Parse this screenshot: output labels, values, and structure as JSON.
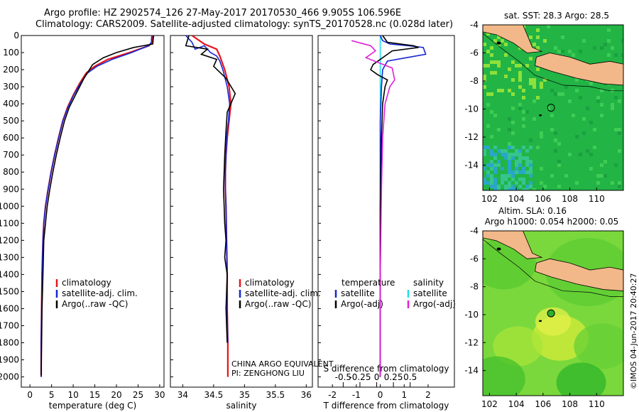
{
  "header": {
    "line1": "Argo profile: HZ 2902574_126 27-May-2017 20170530_466 9.905S 106.596E",
    "line2": "Climatology: CARS2009. Satellite-adjusted climatology: synTS_20170528.nc (0.028d later)"
  },
  "side_stamp": "©IMOS 04-Jun-2017 20:40:27",
  "colors": {
    "climatology": "#e8141b",
    "satellite": "#1526d4",
    "argo": "#000000",
    "sal_satellite": "#22dde8",
    "sal_argo": "#e020d8",
    "land": "#f2b889"
  },
  "chart_data": [
    {
      "type": "line",
      "xlabel": "temperature (deg C)",
      "ylabel": "",
      "xlim": [
        -2,
        31
      ],
      "ylim": [
        2060,
        0
      ],
      "xticks": [
        "0",
        "5",
        "10",
        "15",
        "20",
        "25",
        "30"
      ],
      "yticks": [
        "0",
        "100",
        "200",
        "300",
        "400",
        "500",
        "600",
        "700",
        "800",
        "900",
        "1000",
        "1100",
        "1200",
        "1300",
        "1400",
        "1500",
        "1600",
        "1700",
        "1800",
        "1900",
        "2000"
      ],
      "legend": [
        "climatology",
        "satellite-adj. clim.",
        "Argo(..raw -QC)"
      ],
      "series": [
        {
          "name": "climatology",
          "x": [
            28.5,
            28.3,
            28.2,
            27.5,
            23,
            18,
            15,
            13,
            11.5,
            10,
            8.7,
            7.6,
            6.6,
            5.7,
            4.9,
            4.2,
            3.6,
            3.2,
            3,
            2.8,
            2.7,
            2.6,
            2.6
          ],
          "y": [
            0,
            20,
            40,
            60,
            100,
            140,
            180,
            220,
            280,
            350,
            420,
            500,
            600,
            700,
            800,
            900,
            1000,
            1100,
            1200,
            1400,
            1600,
            1800,
            2000
          ]
        },
        {
          "name": "satellite-adj. clim.",
          "x": [
            28.2,
            28.1,
            28.1,
            27.4,
            23.5,
            19,
            15.5,
            13.3,
            11.7,
            10.1,
            8.8,
            7.6,
            6.6,
            5.7,
            4.9,
            4.2,
            3.6,
            3.2,
            3,
            2.8,
            2.7,
            2.6,
            2.6
          ],
          "y": [
            0,
            20,
            40,
            60,
            100,
            140,
            180,
            220,
            280,
            350,
            420,
            500,
            600,
            700,
            800,
            900,
            1000,
            1100,
            1200,
            1400,
            1600,
            1800,
            2000
          ]
        },
        {
          "name": "Argo(..raw -QC)",
          "x": [
            28.6,
            28.5,
            28.4,
            24,
            20,
            17,
            14.5,
            13.5,
            12.5,
            11.5,
            10.3,
            9.1,
            8,
            7,
            6.1,
            5.3,
            4.6,
            4,
            3.6,
            3.2,
            3,
            2.8,
            2.7,
            2.6
          ],
          "y": [
            0,
            20,
            50,
            70,
            100,
            130,
            170,
            210,
            250,
            300,
            360,
            420,
            500,
            600,
            700,
            800,
            900,
            1000,
            1100,
            1200,
            1400,
            1600,
            1800,
            1990
          ]
        }
      ]
    },
    {
      "type": "line",
      "xlabel": "salinity",
      "xlim": [
        33.8,
        36.1
      ],
      "ylim": [
        2060,
        0
      ],
      "xticks": [
        "34",
        "34.5",
        "35",
        "35.5",
        "36"
      ],
      "legend": [
        "climatology",
        "satellite-adj. clim.",
        "Argo(..raw -QC)"
      ],
      "annotation": [
        "CHINA ARGO EQUIVALENT",
        "PI: ZENGHONG LIU"
      ],
      "series": [
        {
          "name": "climatology",
          "x": [
            34.15,
            34.35,
            34.55,
            34.6,
            34.68,
            34.75,
            34.78,
            34.75,
            34.72,
            34.7,
            34.69,
            34.69,
            34.7,
            34.71,
            34.72,
            34.72,
            34.73,
            34.73
          ],
          "y": [
            0,
            50,
            80,
            120,
            200,
            300,
            400,
            500,
            600,
            700,
            800,
            900,
            1000,
            1200,
            1400,
            1600,
            1800,
            2000
          ]
        },
        {
          "name": "satellite-adj. clim.",
          "x": [
            34.05,
            34.15,
            34.2,
            34.35,
            34.45,
            34.55,
            34.6,
            34.65,
            34.72,
            34.76,
            34.74,
            34.71,
            34.7,
            34.69,
            34.69,
            34.7,
            34.71,
            34.72,
            34.72,
            34.73
          ],
          "y": [
            0,
            40,
            80,
            60,
            100,
            120,
            150,
            200,
            300,
            400,
            500,
            600,
            700,
            800,
            900,
            1000,
            1200,
            1400,
            1600,
            1800
          ]
        },
        {
          "name": "Argo(..raw -QC)",
          "x": [
            34.1,
            34.05,
            34.4,
            34.3,
            34.55,
            34.5,
            34.7,
            34.85,
            34.72,
            34.7,
            34.68,
            34.67,
            34.66,
            34.67,
            34.68,
            34.7,
            34.68,
            34.72,
            34.7,
            34.72
          ],
          "y": [
            0,
            60,
            80,
            110,
            140,
            180,
            250,
            340,
            450,
            560,
            700,
            800,
            900,
            1000,
            1100,
            1200,
            1300,
            1400,
            1600,
            1800
          ]
        }
      ]
    },
    {
      "type": "line",
      "xlabel": "T difference from climatology",
      "xlabel_top": "S difference from climatology",
      "xlim": [
        -2.6,
        3.1
      ],
      "ylim": [
        2060,
        0
      ],
      "xticks": [
        "-2",
        "-1",
        "0",
        "1",
        "2"
      ],
      "top_xticks": [
        "-0.5",
        "-0.25",
        "0",
        "0.25",
        "0.5"
      ],
      "legend": {
        "temperature": [
          "satellite",
          "Argo(-adj)"
        ],
        "salinity": [
          "satellite",
          "Argo(-adj)"
        ]
      },
      "series": [
        {
          "name": "satellite",
          "x": [
            0,
            0.1,
            0.4,
            1.2,
            1.8,
            1.9,
            1.1,
            0.3,
            0.1,
            0.05,
            0,
            0,
            0,
            0
          ],
          "y": [
            0,
            30,
            50,
            60,
            70,
            110,
            130,
            150,
            200,
            300,
            500,
            1000,
            1500,
            2000
          ]
        },
        {
          "name": "Argo(-adj)",
          "x": [
            0.1,
            0.3,
            1.4,
            1.6,
            0.5,
            -0.3,
            -0.4,
            -0.1,
            0.3,
            0.2,
            0.1,
            0.05,
            0,
            0,
            0,
            0
          ],
          "y": [
            0,
            40,
            60,
            70,
            90,
            170,
            200,
            230,
            260,
            300,
            400,
            600,
            1000,
            1400,
            1800,
            2000
          ]
        },
        {
          "name": "sal satellite",
          "x": [
            0,
            0,
            0,
            0,
            0
          ],
          "y": [
            0,
            500,
            1000,
            1500,
            2000
          ]
        },
        {
          "name": "sal Argo(-adj)",
          "x": [
            -1.2,
            -0.4,
            -0.2,
            -0.6,
            0.5,
            0.6,
            0.4,
            0.2,
            0.1,
            0.05,
            0,
            0
          ],
          "y": [
            30,
            60,
            90,
            130,
            190,
            260,
            300,
            400,
            600,
            900,
            1400,
            2000
          ]
        }
      ]
    },
    {
      "type": "heatmap",
      "title": "sat. SST: 28.3 Argo: 28.5",
      "xlim": [
        101.5,
        112
      ],
      "ylim": [
        -15.8,
        -4
      ],
      "xticks": [
        "102",
        "104",
        "106",
        "108",
        "110"
      ],
      "yticks": [
        "-4",
        "-6",
        "-8",
        "-10",
        "-12",
        "-14"
      ],
      "marker": {
        "lon": 106.596,
        "lat": -9.905
      }
    },
    {
      "type": "heatmap",
      "title": "Altim. SLA: 0.16",
      "subtitle": "Argo h1000: 0.054 h2000: 0.05",
      "xlim": [
        101.5,
        112
      ],
      "ylim": [
        -15.8,
        -4
      ],
      "xticks": [
        "102",
        "104",
        "106",
        "108",
        "110"
      ],
      "yticks": [
        "-4",
        "-6",
        "-8",
        "-10",
        "-12",
        "-14"
      ],
      "marker": {
        "lon": 106.596,
        "lat": -9.905
      }
    }
  ]
}
